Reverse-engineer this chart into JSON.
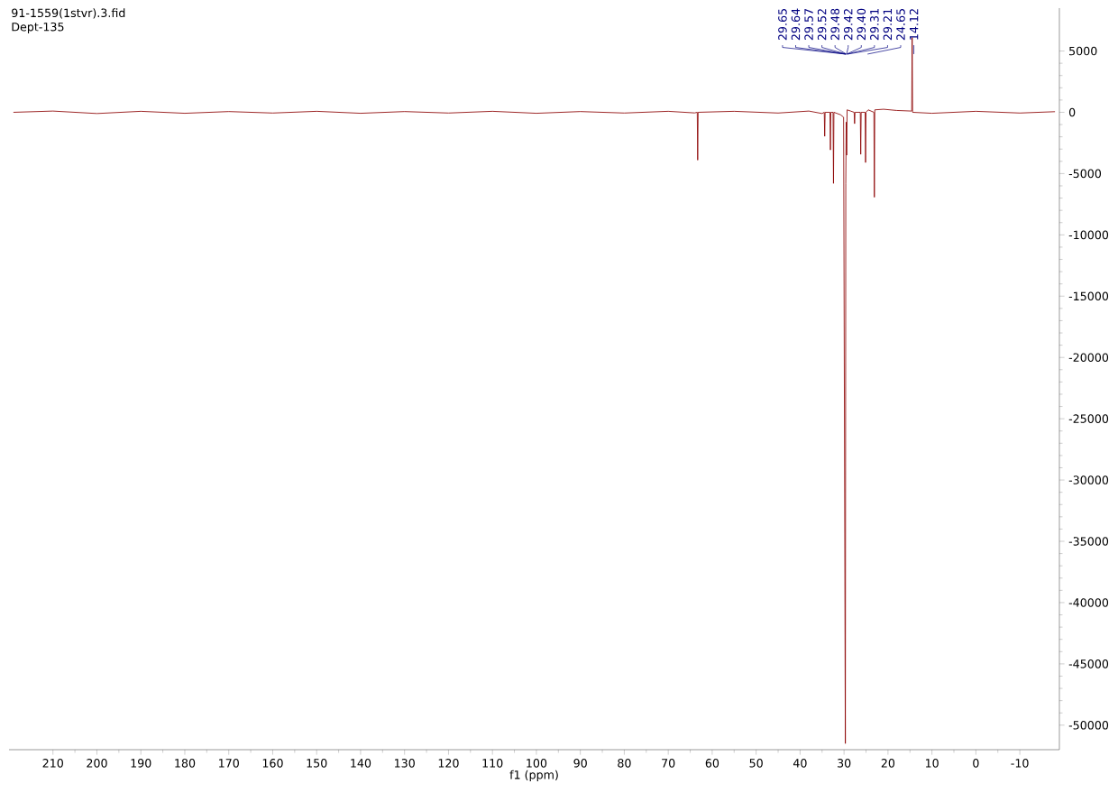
{
  "chart_data": {
    "type": "line",
    "title": "91-1559(1stvr).3.fid",
    "subtitle": "Dept-135",
    "xlabel": "f1 (ppm)",
    "x": [
      219,
      210,
      200,
      190,
      180,
      170,
      160,
      150,
      140,
      130,
      120,
      110,
      100,
      90,
      80,
      70,
      64,
      63.4,
      63.3,
      63.2,
      55,
      45,
      38,
      35,
      34.5,
      34.4,
      34.3,
      33.2,
      33.1,
      33.0,
      32.5,
      32.4,
      32.3,
      30.8,
      30.1,
      29.7,
      29.6,
      29.5,
      29.4,
      29.3,
      28.5,
      27.7,
      27.6,
      27.5,
      26.3,
      26.2,
      26.1,
      25.2,
      25.1,
      25.0,
      24.5,
      23.2,
      23.1,
      23.0,
      21,
      18,
      14.6,
      14.5,
      14.4,
      10,
      0,
      -10,
      -18
    ],
    "series": [
      {
        "color": "#8b0000",
        "values": [
          0,
          100,
          -100,
          80,
          -80,
          60,
          -60,
          80,
          -80,
          60,
          -60,
          80,
          -80,
          60,
          -60,
          80,
          -50,
          0,
          -3900,
          0,
          80,
          -60,
          100,
          -100,
          0,
          -1960,
          0,
          0,
          -3070,
          0,
          0,
          -5800,
          0,
          -200,
          -400,
          -51500,
          -5800,
          -800,
          -3500,
          200,
          100,
          0,
          -930,
          0,
          0,
          -3430,
          0,
          0,
          -4100,
          0,
          200,
          0,
          -6930,
          200,
          250,
          150,
          100,
          6100,
          0,
          -80,
          80,
          -60,
          50
        ]
      }
    ],
    "xlim": [
      220,
      -19
    ],
    "xticks": [
      210,
      200,
      190,
      180,
      170,
      160,
      150,
      140,
      130,
      120,
      110,
      100,
      90,
      80,
      70,
      60,
      50,
      40,
      30,
      20,
      10,
      0,
      -10
    ],
    "ylim": [
      -52000,
      8500
    ],
    "yticks": [
      5000,
      0,
      -5000,
      -10000,
      -15000,
      -20000,
      -25000,
      -30000,
      -35000,
      -40000,
      -45000,
      -50000
    ],
    "annotations": [
      {
        "text": "29.65",
        "x": 29.65
      },
      {
        "text": "29.64",
        "x": 29.64
      },
      {
        "text": "29.57",
        "x": 29.57
      },
      {
        "text": "29.52",
        "x": 29.52
      },
      {
        "text": "29.48",
        "x": 29.48
      },
      {
        "text": "29.42",
        "x": 29.42
      },
      {
        "text": "29.40",
        "x": 29.4
      },
      {
        "text": "29.31",
        "x": 29.31
      },
      {
        "text": "29.21",
        "x": 29.21
      },
      {
        "text": "24.65",
        "x": 24.65
      },
      {
        "text": "14.12",
        "x": 14.12
      }
    ],
    "grid": false,
    "marker": "none",
    "line_style": "solid"
  }
}
